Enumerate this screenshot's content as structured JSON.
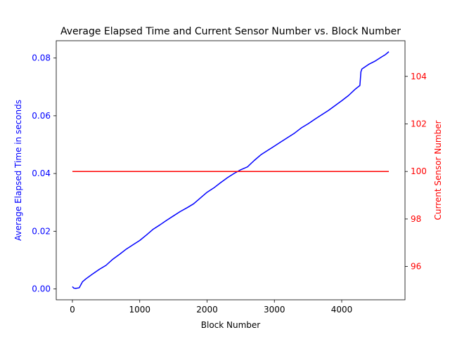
{
  "chart_data": {
    "type": "line",
    "title": "Average Elapsed Time and Current Sensor Number vs. Block Number",
    "xlabel": "Block Number",
    "ylabel_left": "Average Elapsed Time in seconds",
    "ylabel_right": "Current Sensor Number",
    "xlim": [
      -240,
      4940
    ],
    "ylim_left": [
      -0.00375,
      0.086
    ],
    "ylim_right": [
      94.6,
      105.5
    ],
    "x_ticks": [
      0,
      1000,
      2000,
      3000,
      4000
    ],
    "x_tick_labels": [
      "0",
      "1000",
      "2000",
      "3000",
      "4000"
    ],
    "y_left_ticks": [
      0.0,
      0.02,
      0.04,
      0.06,
      0.08
    ],
    "y_left_tick_labels": [
      "0.00",
      "0.02",
      "0.04",
      "0.06",
      "0.08"
    ],
    "y_right_ticks": [
      96,
      98,
      100,
      102,
      104
    ],
    "y_right_tick_labels": [
      "96",
      "98",
      "100",
      "102",
      "104"
    ],
    "grid": false,
    "colors": {
      "left_axis": "#0000ff",
      "right_axis": "#ff0000"
    },
    "series": [
      {
        "axis": "left",
        "color": "#0000ff",
        "x": [
          0,
          20,
          50,
          100,
          120,
          150,
          200,
          300,
          400,
          500,
          600,
          700,
          800,
          900,
          1000,
          1100,
          1200,
          1300,
          1400,
          1500,
          1600,
          1700,
          1800,
          1900,
          2000,
          2100,
          2200,
          2300,
          2400,
          2500,
          2600,
          2700,
          2800,
          2900,
          3000,
          3100,
          3200,
          3300,
          3400,
          3500,
          3600,
          3700,
          3800,
          3900,
          4000,
          4100,
          4200,
          4270,
          4285,
          4300,
          4350,
          4400,
          4500,
          4600,
          4650,
          4700
        ],
        "y": [
          0.0008,
          0.0003,
          0.0002,
          0.0004,
          0.0012,
          0.0025,
          0.0035,
          0.0052,
          0.0068,
          0.0082,
          0.0103,
          0.012,
          0.0138,
          0.0153,
          0.0168,
          0.0187,
          0.0207,
          0.0222,
          0.0238,
          0.0253,
          0.0268,
          0.0281,
          0.0295,
          0.0315,
          0.0335,
          0.035,
          0.0368,
          0.0385,
          0.04,
          0.0413,
          0.0423,
          0.0445,
          0.0465,
          0.048,
          0.0495,
          0.051,
          0.0525,
          0.054,
          0.0558,
          0.0572,
          0.0588,
          0.0603,
          0.0618,
          0.0635,
          0.0652,
          0.067,
          0.0692,
          0.0705,
          0.0752,
          0.0762,
          0.077,
          0.0778,
          0.079,
          0.0805,
          0.0812,
          0.0822
        ]
      },
      {
        "axis": "right",
        "color": "#ff0000",
        "x": [
          0,
          4700
        ],
        "y": [
          100,
          100
        ]
      }
    ]
  }
}
